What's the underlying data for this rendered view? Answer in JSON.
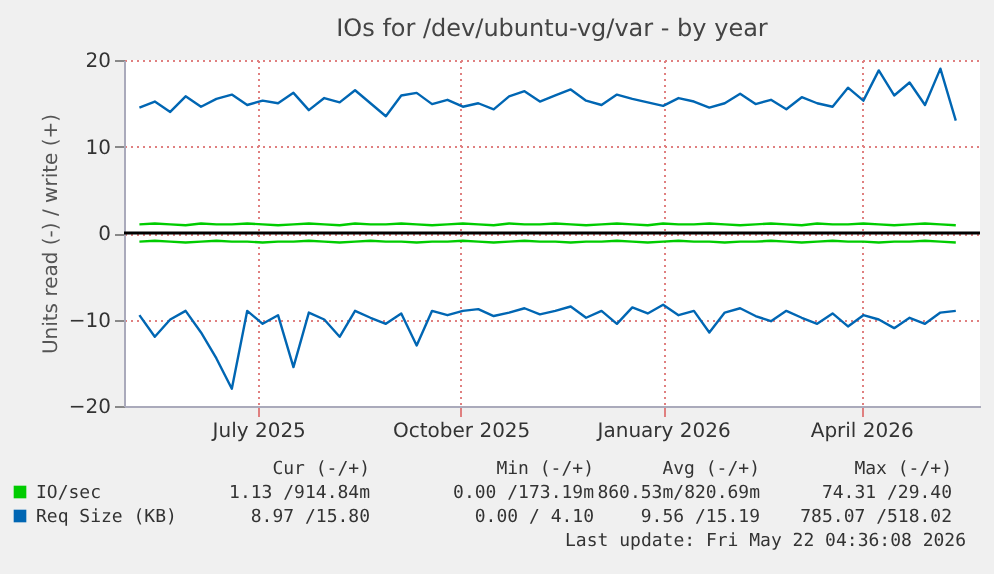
{
  "chart_data": {
    "type": "line",
    "title": "IOs for /dev/ubuntu-vg/var - by year",
    "ylabel": "Units read (-) / write (+)",
    "x": [
      "2025-05-08",
      "2025-05-15",
      "2025-05-22",
      "2025-05-29",
      "2025-06-05",
      "2025-06-12",
      "2025-06-19",
      "2025-06-26",
      "2025-07-03",
      "2025-07-10",
      "2025-07-17",
      "2025-07-24",
      "2025-07-31",
      "2025-08-07",
      "2025-08-14",
      "2025-08-21",
      "2025-08-28",
      "2025-09-04",
      "2025-09-11",
      "2025-09-18",
      "2025-09-25",
      "2025-10-02",
      "2025-10-09",
      "2025-10-16",
      "2025-10-23",
      "2025-10-30",
      "2025-11-06",
      "2025-11-13",
      "2025-11-20",
      "2025-11-27",
      "2025-12-04",
      "2025-12-11",
      "2025-12-18",
      "2025-12-25",
      "2026-01-01",
      "2026-01-08",
      "2026-01-15",
      "2026-01-22",
      "2026-01-29",
      "2026-02-05",
      "2026-02-12",
      "2026-02-19",
      "2026-02-26",
      "2026-03-05",
      "2026-03-12",
      "2026-03-19",
      "2026-03-26",
      "2026-04-02",
      "2026-04-09",
      "2026-04-16",
      "2026-04-23",
      "2026-04-30",
      "2026-05-07",
      "2026-05-14"
    ],
    "series": [
      {
        "name": "IO/sec",
        "color": "#00cc00",
        "values": [
          1.0,
          1.1,
          1.0,
          0.9,
          1.1,
          1.0,
          1.0,
          1.1,
          1.0,
          0.9,
          1.0,
          1.1,
          1.0,
          0.9,
          1.1,
          1.0,
          1.0,
          1.1,
          1.0,
          0.9,
          1.0,
          1.1,
          1.0,
          0.9,
          1.1,
          1.0,
          1.0,
          1.1,
          1.0,
          0.9,
          1.0,
          1.1,
          1.0,
          0.9,
          1.1,
          1.0,
          1.0,
          1.1,
          1.0,
          0.9,
          1.0,
          1.1,
          1.0,
          0.9,
          1.1,
          1.0,
          1.0,
          1.1,
          1.0,
          0.9,
          1.0,
          1.1,
          1.0,
          0.9
        ]
      },
      {
        "color": "#00cc00",
        "values": [
          -1.0,
          -0.9,
          -1.0,
          -1.1,
          -1.0,
          -0.9,
          -1.0,
          -1.0,
          -1.1,
          -1.0,
          -1.0,
          -0.9,
          -1.0,
          -1.1,
          -1.0,
          -0.9,
          -1.0,
          -1.0,
          -1.1,
          -1.0,
          -1.0,
          -0.9,
          -1.0,
          -1.1,
          -1.0,
          -0.9,
          -1.0,
          -1.0,
          -1.1,
          -1.0,
          -1.0,
          -0.9,
          -1.0,
          -1.1,
          -1.0,
          -0.9,
          -1.0,
          -1.0,
          -1.1,
          -1.0,
          -1.0,
          -0.9,
          -1.0,
          -1.1,
          -1.0,
          -0.9,
          -1.0,
          -1.0,
          -1.1,
          -1.0,
          -1.0,
          -0.9,
          -1.0,
          -1.1
        ]
      },
      {
        "name": "Req Size (KB)",
        "color": "#0066b3",
        "values": [
          14.5,
          15.2,
          14.0,
          15.8,
          14.6,
          15.5,
          16.0,
          14.8,
          15.3,
          15.0,
          16.2,
          14.2,
          15.6,
          15.1,
          16.5,
          15.0,
          13.5,
          15.9,
          16.2,
          14.9,
          15.4,
          14.6,
          15.0,
          14.3,
          15.8,
          16.4,
          15.2,
          15.9,
          16.6,
          15.3,
          14.8,
          16.0,
          15.5,
          15.1,
          14.7,
          15.6,
          15.2,
          14.5,
          15.0,
          16.1,
          14.9,
          15.4,
          14.3,
          15.7,
          15.0,
          14.6,
          16.8,
          15.3,
          18.8,
          15.9,
          17.4,
          14.8,
          19.0,
          13.0
        ]
      },
      {
        "color": "#0066b3",
        "values": [
          -9.5,
          -12.0,
          -10.0,
          -9.0,
          -11.5,
          -14.5,
          -18.0,
          -9.0,
          -10.5,
          -9.5,
          -15.5,
          -9.2,
          -10.0,
          -12.0,
          -9.0,
          -9.8,
          -10.5,
          -9.3,
          -13.0,
          -9.0,
          -9.5,
          -9.0,
          -8.8,
          -9.6,
          -9.2,
          -8.7,
          -9.4,
          -9.0,
          -8.5,
          -9.8,
          -9.0,
          -10.5,
          -8.6,
          -9.3,
          -8.3,
          -9.5,
          -9.0,
          -11.5,
          -9.2,
          -8.7,
          -9.6,
          -10.2,
          -9.0,
          -9.8,
          -10.5,
          -9.3,
          -10.8,
          -9.5,
          -10.0,
          -11.0,
          -9.8,
          -10.5,
          -9.2,
          -9.0
        ]
      }
    ],
    "xlim": [
      "2025-05-01",
      "2026-05-25"
    ],
    "xticks": [
      {
        "value": "2025-07-01",
        "label": "July 2025"
      },
      {
        "value": "2025-10-01",
        "label": "October 2025"
      },
      {
        "value": "2026-01-01",
        "label": "January 2026"
      },
      {
        "value": "2026-04-01",
        "label": "April 2026"
      }
    ],
    "ylim": [
      -20,
      20
    ],
    "yticks": [
      -20,
      -10,
      0,
      10,
      20
    ],
    "ref_lines": [
      {
        "axis": "y",
        "value": 0,
        "color": "#000000"
      }
    ],
    "grid": true,
    "legend": "bottom left",
    "line_style": "solid",
    "marker": "none",
    "annotations": [
      "Cur (-/+)",
      "Min (-/+)",
      "Avg (-/+)",
      "Max (-/+)",
      "1.13 /914.84m",
      "0.00 /173.19m",
      "860.53m/820.69m",
      "74.31 /29.40",
      "8.97 /15.80",
      "0.00 / 4.10",
      "9.56 /15.19",
      "785.07 /518.02",
      "Last update: Fri May 22 04:36:08 2026"
    ]
  }
}
